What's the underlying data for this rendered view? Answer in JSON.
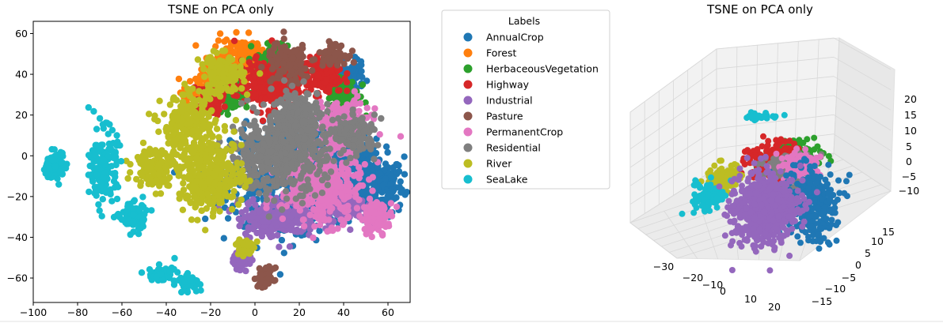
{
  "chart_data": [
    {
      "type": "scatter",
      "title": "TSNE on PCA only",
      "xlabel": "",
      "ylabel": "",
      "xlim": [
        -100,
        70
      ],
      "ylim": [
        -72,
        66
      ],
      "xticks": [
        -100,
        -80,
        -60,
        -40,
        -20,
        0,
        20,
        40,
        60
      ],
      "yticks": [
        -60,
        -40,
        -20,
        0,
        20,
        40,
        60
      ],
      "legend": {
        "title": "Labels",
        "placement": "outside-right",
        "entries": [
          {
            "name": "AnnualCrop",
            "color": "#1f77b4"
          },
          {
            "name": "Forest",
            "color": "#ff7f0e"
          },
          {
            "name": "HerbaceousVegetation",
            "color": "#2ca02c"
          },
          {
            "name": "Highway",
            "color": "#d62728"
          },
          {
            "name": "Industrial",
            "color": "#9467bd"
          },
          {
            "name": "Pasture",
            "color": "#8c564b"
          },
          {
            "name": "PermanentCrop",
            "color": "#e377c2"
          },
          {
            "name": "Residential",
            "color": "#7f7f7f"
          },
          {
            "name": "River",
            "color": "#bcbd22"
          },
          {
            "name": "SeaLake",
            "color": "#17becf"
          }
        ]
      },
      "series": [
        {
          "name": "AnnualCrop",
          "color": "#1f77b4",
          "clusters": [
            [
              55,
              -15,
              10,
              12
            ],
            [
              45,
              0,
              8,
              8
            ],
            [
              20,
              -10,
              25,
              20
            ],
            [
              42,
              38,
              6,
              6
            ]
          ]
        },
        {
          "name": "Forest",
          "color": "#ff7f0e",
          "clusters": [
            [
              -5,
              48,
              12,
              8
            ],
            [
              -25,
              32,
              6,
              6
            ]
          ]
        },
        {
          "name": "HerbaceousVegetation",
          "color": "#2ca02c",
          "clusters": [
            [
              10,
              45,
              8,
              8
            ],
            [
              40,
              30,
              6,
              8
            ],
            [
              -10,
              30,
              6,
              6
            ]
          ]
        },
        {
          "name": "Highway",
          "color": "#d62728",
          "clusters": [
            [
              -20,
              28,
              5,
              6
            ],
            [
              5,
              35,
              12,
              10
            ],
            [
              30,
              40,
              8,
              8
            ]
          ]
        },
        {
          "name": "Industrial",
          "color": "#9467bd",
          "clusters": [
            [
              10,
              -30,
              15,
              8
            ],
            [
              40,
              -25,
              8,
              6
            ],
            [
              -5,
              -50,
              4,
              4
            ]
          ]
        },
        {
          "name": "Pasture",
          "color": "#8c564b",
          "clusters": [
            [
              15,
              45,
              8,
              8
            ],
            [
              35,
              50,
              5,
              4
            ],
            [
              5,
              -60,
              3,
              4
            ]
          ]
        },
        {
          "name": "PermanentCrop",
          "color": "#e377c2",
          "clusters": [
            [
              40,
              15,
              10,
              10
            ],
            [
              30,
              -15,
              15,
              15
            ],
            [
              55,
              -30,
              6,
              6
            ]
          ]
        },
        {
          "name": "Residential",
          "color": "#7f7f7f",
          "clusters": [
            [
              10,
              0,
              18,
              15
            ],
            [
              20,
              20,
              10,
              10
            ],
            [
              45,
              10,
              8,
              8
            ]
          ]
        },
        {
          "name": "River",
          "color": "#bcbd22",
          "clusters": [
            [
              -30,
              15,
              10,
              12
            ],
            [
              -15,
              40,
              8,
              8
            ],
            [
              -20,
              -10,
              12,
              15
            ],
            [
              -45,
              -5,
              8,
              8
            ],
            [
              -5,
              -45,
              3,
              4
            ]
          ]
        },
        {
          "name": "SeaLake",
          "color": "#17becf",
          "clusters": [
            [
              -90,
              -5,
              4,
              6
            ],
            [
              -68,
              -5,
              5,
              15
            ],
            [
              -55,
              -30,
              5,
              6
            ],
            [
              -42,
              -58,
              5,
              3
            ],
            [
              -30,
              -62,
              4,
              3
            ]
          ]
        }
      ]
    },
    {
      "type": "scatter",
      "title": "TSNE on PCA only",
      "projection": "3d",
      "xticks": [
        -30,
        -20,
        -10,
        0,
        10,
        20
      ],
      "yticks": [
        -15,
        -10,
        -5,
        0,
        5,
        10,
        15
      ],
      "zticks": [
        -10,
        -5,
        0,
        5,
        10,
        15,
        20
      ]
    }
  ]
}
